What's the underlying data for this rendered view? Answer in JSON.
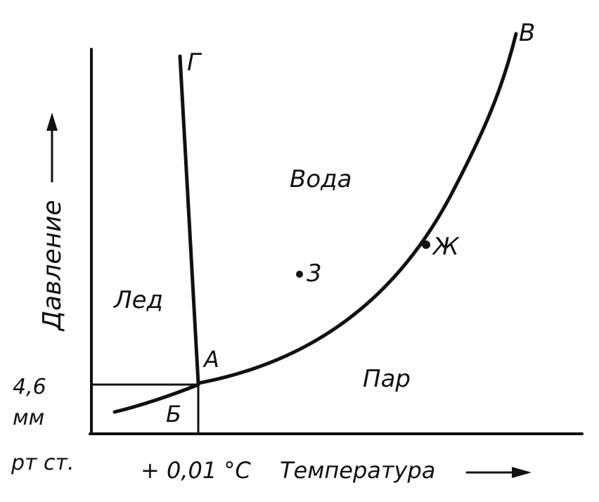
{
  "axes": {
    "y_label": "Давление",
    "x_label": "Температура",
    "pressure_value": "4,6",
    "pressure_unit_line1": "мм",
    "pressure_unit_line2": "рт ст.",
    "temperature_value": "+ 0,01 °С"
  },
  "regions": {
    "water": "Вода",
    "ice": "Лед",
    "vapor": "Пар"
  },
  "points": {
    "A": "А",
    "B": "Б",
    "V": "В",
    "G": "Г",
    "Zh": "Ж",
    "Z": "3"
  },
  "colors": {
    "ink": "#111111",
    "background": "#ffffff"
  }
}
